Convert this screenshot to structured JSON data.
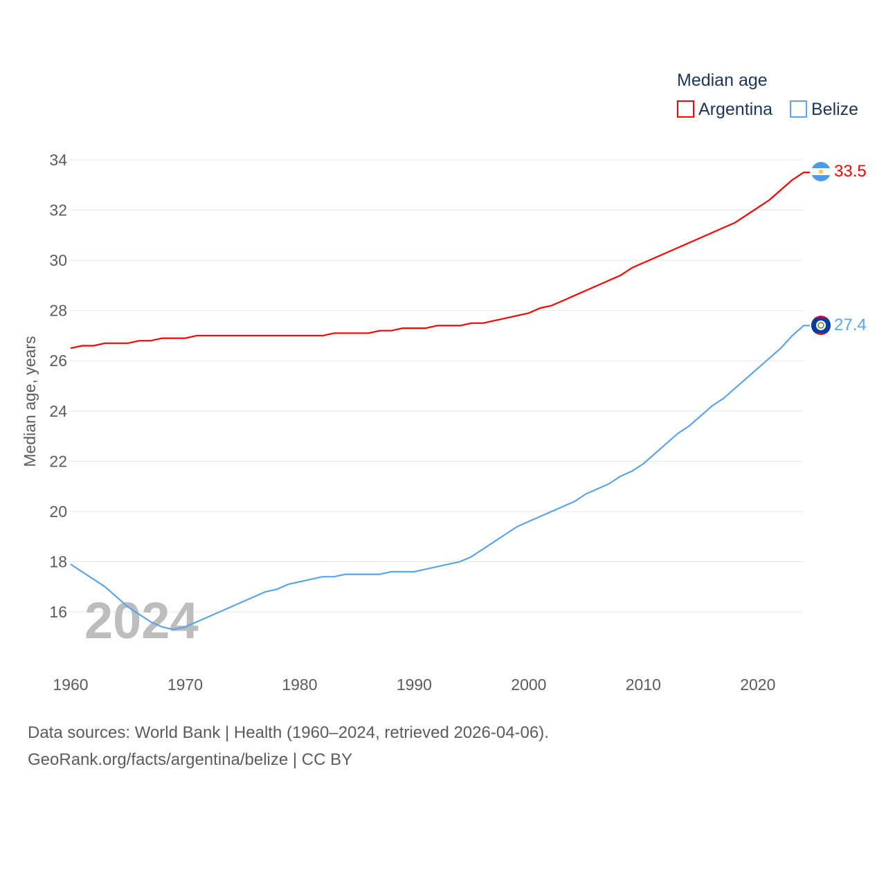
{
  "chart_data": {
    "type": "line",
    "title": "Median age",
    "ylabel": "Median age, years",
    "xlabel": "",
    "ylim": [
      14.5,
      34
    ],
    "xlim": [
      1960,
      2024
    ],
    "yticks": [
      16,
      18,
      20,
      22,
      24,
      26,
      28,
      30,
      32,
      34
    ],
    "xticks": [
      1960,
      1970,
      1980,
      1990,
      2000,
      2010,
      2020
    ],
    "grid": true,
    "legend_position": "top-right",
    "year_watermark": "2024",
    "x": [
      1960,
      1961,
      1962,
      1963,
      1964,
      1965,
      1966,
      1967,
      1968,
      1969,
      1970,
      1971,
      1972,
      1973,
      1974,
      1975,
      1976,
      1977,
      1978,
      1979,
      1980,
      1981,
      1982,
      1983,
      1984,
      1985,
      1986,
      1987,
      1988,
      1989,
      1990,
      1991,
      1992,
      1993,
      1994,
      1995,
      1996,
      1997,
      1998,
      1999,
      2000,
      2001,
      2002,
      2003,
      2004,
      2005,
      2006,
      2007,
      2008,
      2009,
      2010,
      2011,
      2012,
      2013,
      2014,
      2015,
      2016,
      2017,
      2018,
      2019,
      2020,
      2021,
      2022,
      2023,
      2024
    ],
    "series": [
      {
        "name": "Argentina",
        "color": "#ff0000",
        "end_label": "33.5",
        "values": [
          26.5,
          26.6,
          26.6,
          26.7,
          26.7,
          26.7,
          26.8,
          26.8,
          26.9,
          26.9,
          26.9,
          27.0,
          27.0,
          27.0,
          27.0,
          27.0,
          27.0,
          27.0,
          27.0,
          27.0,
          27.0,
          27.0,
          27.0,
          27.1,
          27.1,
          27.1,
          27.1,
          27.2,
          27.2,
          27.3,
          27.3,
          27.3,
          27.4,
          27.4,
          27.4,
          27.5,
          27.5,
          27.6,
          27.7,
          27.8,
          27.9,
          28.1,
          28.2,
          28.4,
          28.6,
          28.8,
          29.0,
          29.2,
          29.4,
          29.7,
          29.9,
          30.1,
          30.3,
          30.5,
          30.7,
          30.9,
          31.1,
          31.3,
          31.5,
          31.8,
          32.1,
          32.4,
          32.8,
          33.2,
          33.5
        ]
      },
      {
        "name": "Belize",
        "color": "#5ba4ec",
        "end_label": "27.4",
        "values": [
          17.9,
          17.6,
          17.3,
          17.0,
          16.6,
          16.2,
          15.9,
          15.6,
          15.4,
          15.3,
          15.4,
          15.6,
          15.8,
          16.0,
          16.2,
          16.4,
          16.6,
          16.8,
          16.9,
          17.1,
          17.2,
          17.3,
          17.4,
          17.4,
          17.5,
          17.5,
          17.5,
          17.5,
          17.6,
          17.6,
          17.6,
          17.7,
          17.8,
          17.9,
          18.0,
          18.2,
          18.5,
          18.8,
          19.1,
          19.4,
          19.6,
          19.8,
          20.0,
          20.2,
          20.4,
          20.7,
          20.9,
          21.1,
          21.4,
          21.6,
          21.9,
          22.3,
          22.7,
          23.1,
          23.4,
          23.8,
          24.2,
          24.5,
          24.9,
          25.3,
          25.7,
          26.1,
          26.5,
          27.0,
          27.4
        ]
      }
    ]
  },
  "footer": {
    "line1": "Data sources: World Bank | Health (1960–2024, retrieved 2026-04-06).",
    "line2": "GeoRank.org/facts/argentina/belize | CC BY"
  }
}
